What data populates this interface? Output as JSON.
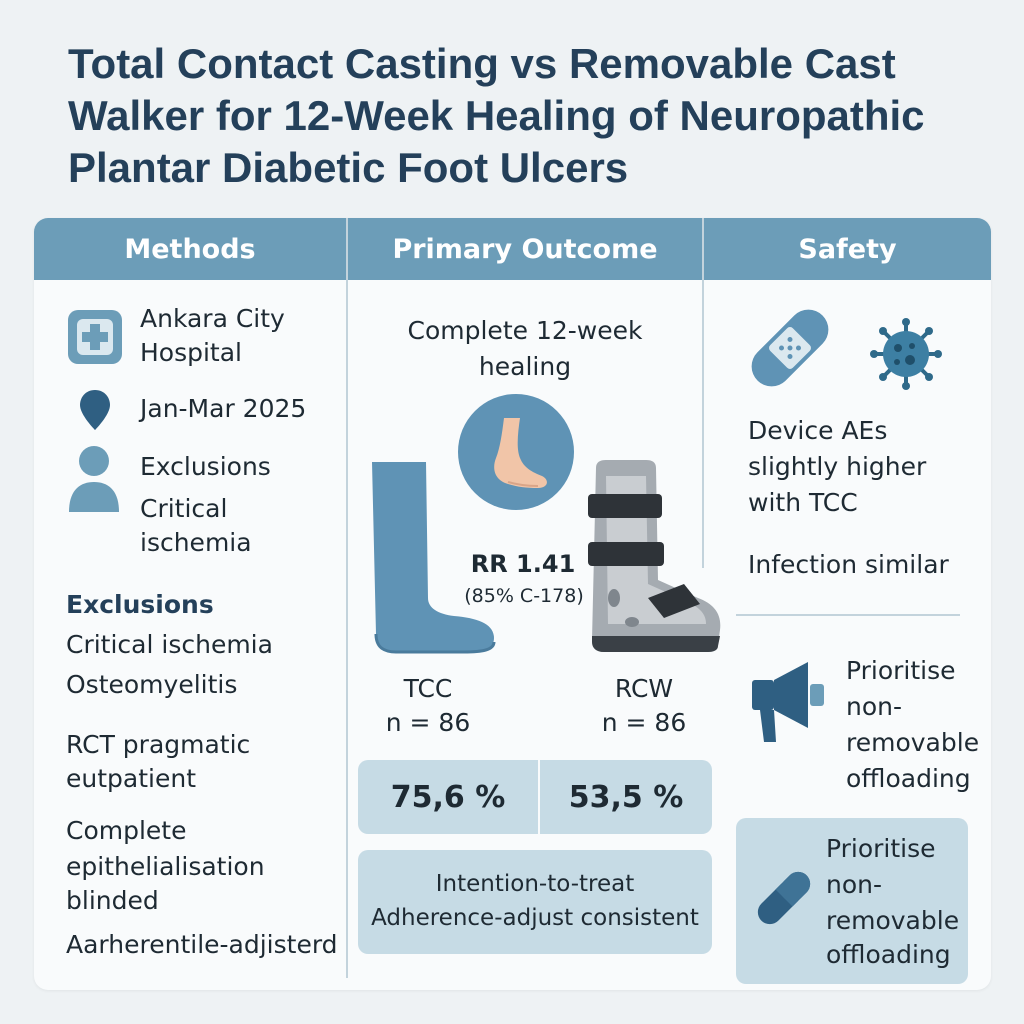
{
  "title": {
    "line1": "Total Contact Casting vs Removable Cast",
    "line2": "Walker for 12-Week Healing of Neuropathic",
    "line3": "Plantar Diabetic Foot Ulcers"
  },
  "methods": {
    "header": "Methods",
    "site_line1": "Ankara City",
    "site_line2": "Hospital",
    "period": "Jan-Mar 2025",
    "excl_label": "Exclusions",
    "excl_line1": "Critical",
    "excl_line2": "ischemia",
    "exclusions_heading": "Exclusions",
    "exclusions": [
      "Critical ischemia",
      "Osteomyelitis"
    ],
    "design_line1": "RCT pragmatic",
    "design_line2": "eutpatient",
    "outcome_line1": "Complete",
    "outcome_line2": "epithelialisation",
    "outcome_line3": "blinded",
    "analysis": "Aarherentile-adjisterd"
  },
  "primary": {
    "header": "Primary Outcome",
    "label_line1": "Complete 12-week",
    "label_line2": "healing",
    "rr": "RR 1.41",
    "ci": "(85% C-178)",
    "tcc_name": "TCC",
    "tcc_n": "n = 86",
    "rcw_name": "RCW",
    "rcw_n": "n = 86",
    "tcc_pct": "75,6 %",
    "rcw_pct": "53,5 %",
    "note_line1": "Intention-to-treat",
    "note_line2": "Adherence-adjust consistent"
  },
  "safety": {
    "header": "Safety",
    "ae_line1": "Device AEs",
    "ae_line2": "slightly higher",
    "ae_line3": "with TCC",
    "infection": "Infection similar",
    "rec1": [
      "Prioritise",
      "non-",
      "removable",
      "offloading"
    ],
    "rec2": [
      "Prioritise",
      "non-",
      "removable",
      "offloading"
    ]
  },
  "colors": {
    "header_bg": "#6c9db8",
    "title": "#24405a",
    "box_bg": "#c6dbe5",
    "cast_blue": "#5f93b5"
  },
  "icons": [
    "hospital-icon",
    "location-pin-icon",
    "person-icon",
    "foot-icon",
    "cast-leg-icon",
    "walker-boot-icon",
    "bandage-icon",
    "bacteria-icon",
    "megaphone-icon",
    "pill-icon"
  ]
}
